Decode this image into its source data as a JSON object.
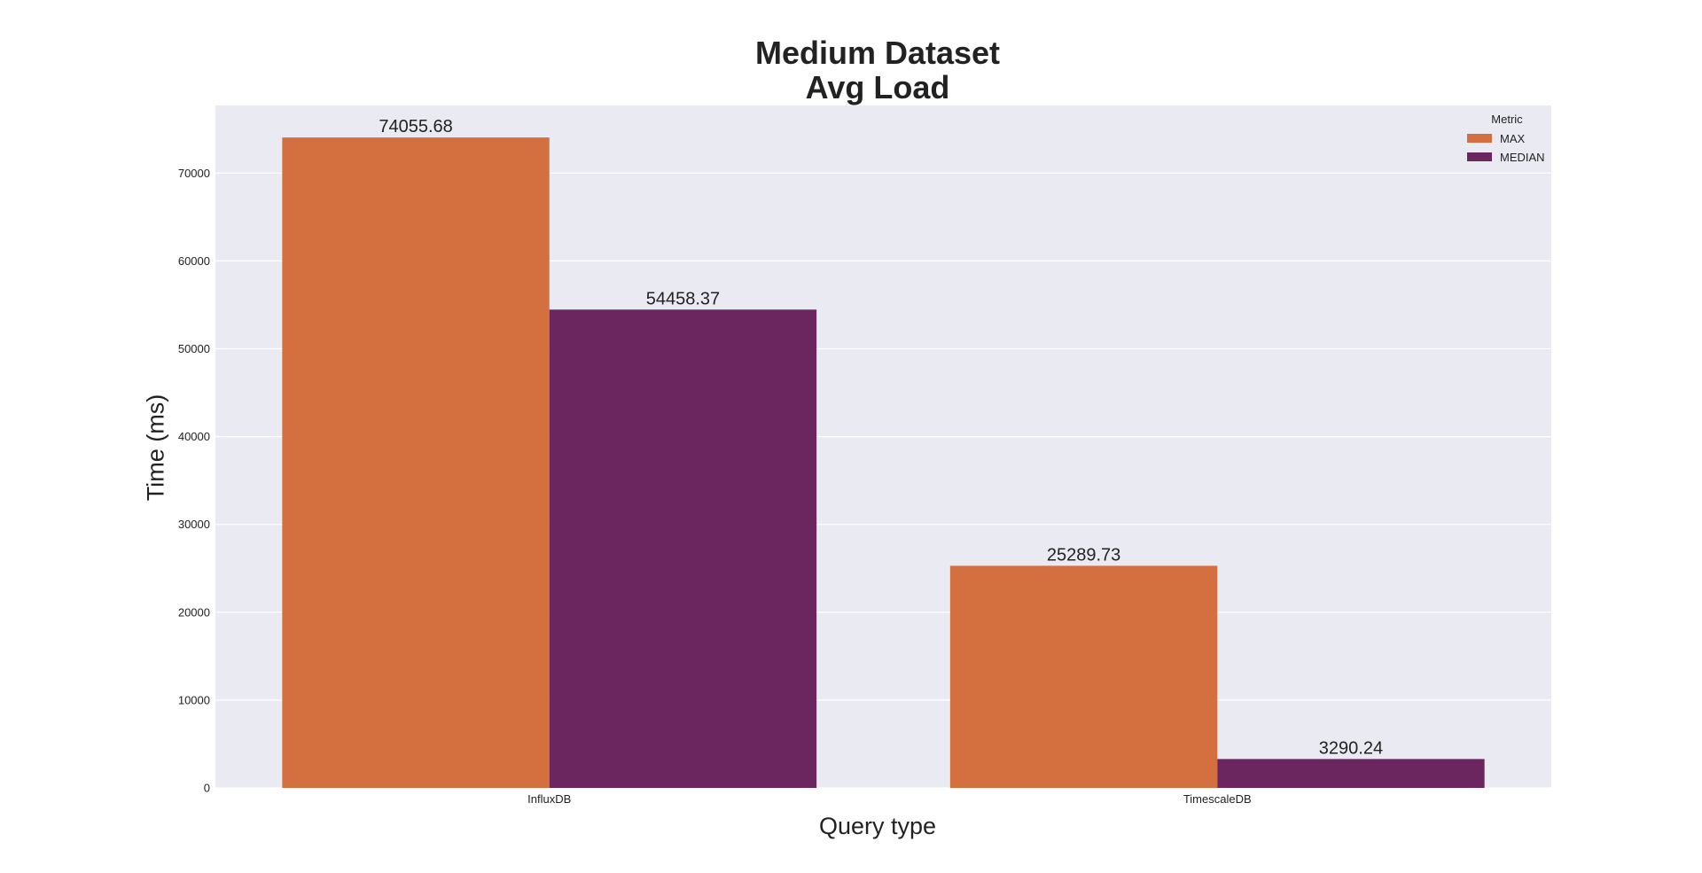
{
  "chart_data": {
    "type": "bar",
    "title": [
      "Medium Dataset",
      "Avg Load"
    ],
    "xlabel": "Query type",
    "ylabel": "Time (ms)",
    "categories": [
      "InfluxDB",
      "TimescaleDB"
    ],
    "series": [
      {
        "name": "MAX",
        "values": [
          74055.68,
          25289.73
        ],
        "color": "#d4703f"
      },
      {
        "name": "MEDIAN",
        "values": [
          54458.37,
          3290.24
        ],
        "color": "#6b2660"
      }
    ],
    "data_labels": [
      [
        "74055.68",
        "25289.73"
      ],
      [
        "54458.37",
        "3290.24"
      ]
    ],
    "ylim": [
      0,
      77700
    ],
    "yticks": [
      0,
      10000,
      20000,
      30000,
      40000,
      50000,
      60000,
      70000
    ],
    "legend": {
      "title": "Metric",
      "position": "top-right"
    },
    "grid": true,
    "plot_background": "#eaeaf2"
  }
}
